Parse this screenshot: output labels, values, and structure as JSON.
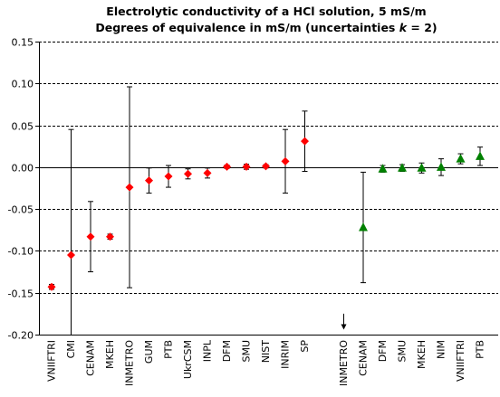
{
  "chart_data": {
    "type": "scatter",
    "title_line1": "Electrolytic conductivity of a HCl solution, 5 mS/m",
    "title_line2_prefix": "Degrees of equivalence in mS/m (uncertainties ",
    "title_line2_k": "k",
    "title_line2_suffix": " = 2)",
    "xlabel": "",
    "ylabel": "",
    "ylim": [
      -0.2,
      0.15
    ],
    "yticks": [
      "0.15",
      "0.10",
      "0.05",
      "0.00",
      "-0.05",
      "-0.10",
      "-0.15",
      "-0.20"
    ],
    "ytick_values": [
      0.15,
      0.1,
      0.05,
      0.0,
      -0.05,
      -0.1,
      -0.15,
      -0.2
    ],
    "grid": "horizontal dashed",
    "categories": [
      "VNIIFTRI",
      "CMI",
      "CENAM",
      "MKEH",
      "INMETRO",
      "GUM",
      "PTB",
      "UkrCSM",
      "INPL",
      "DFM",
      "SMU",
      "NIST",
      "INRIM",
      "SP",
      "",
      "INMETRO",
      "CENAM",
      "DFM",
      "SMU",
      "MKEH",
      "NIM",
      "VNIIFTRI",
      "PTB"
    ],
    "series": [
      {
        "marker": "diamond",
        "color": "#ff0000",
        "points": [
          {
            "category": "VNIIFTRI",
            "index": 0,
            "value": -0.143,
            "unc": 0.003
          },
          {
            "category": "CMI",
            "index": 1,
            "value": -0.105,
            "unc": 0.15
          },
          {
            "category": "CENAM",
            "index": 2,
            "value": -0.083,
            "unc": 0.042
          },
          {
            "category": "MKEH",
            "index": 3,
            "value": -0.083,
            "unc": 0.003
          },
          {
            "category": "INMETRO",
            "index": 4,
            "value": -0.024,
            "unc": 0.12
          },
          {
            "category": "GUM",
            "index": 5,
            "value": -0.016,
            "unc": 0.015
          },
          {
            "category": "PTB",
            "index": 6,
            "value": -0.011,
            "unc": 0.013
          },
          {
            "category": "UkrCSM",
            "index": 7,
            "value": -0.008,
            "unc": 0.006
          },
          {
            "category": "INPL",
            "index": 8,
            "value": -0.007,
            "unc": 0.006
          },
          {
            "category": "DFM",
            "index": 9,
            "value": 0.0005,
            "unc": 0.002
          },
          {
            "category": "SMU",
            "index": 10,
            "value": 0.0005,
            "unc": 0.003
          },
          {
            "category": "NIST",
            "index": 11,
            "value": 0.001,
            "unc": 0.002
          },
          {
            "category": "INRIM",
            "index": 12,
            "value": 0.007,
            "unc": 0.038
          },
          {
            "category": "SP",
            "index": 13,
            "value": 0.031,
            "unc": 0.036
          }
        ]
      },
      {
        "marker": "triangle",
        "color": "#008000",
        "points": [
          {
            "category": "CENAM",
            "index": 16,
            "value": -0.072,
            "unc": 0.066
          },
          {
            "category": "DFM",
            "index": 17,
            "value": -0.002,
            "unc": 0.004
          },
          {
            "category": "SMU",
            "index": 18,
            "value": -0.001,
            "unc": 0.004
          },
          {
            "category": "MKEH",
            "index": 19,
            "value": -0.001,
            "unc": 0.006
          },
          {
            "category": "NIM",
            "index": 20,
            "value": 0.0,
            "unc": 0.01
          },
          {
            "category": "VNIIFTRI",
            "index": 21,
            "value": 0.01,
            "unc": 0.006
          },
          {
            "category": "PTB",
            "index": 22,
            "value": 0.013,
            "unc": 0.011
          }
        ]
      }
    ],
    "arrow_annotation": {
      "category": "INMETRO",
      "index": 15,
      "from_value": -0.175,
      "to_value": -0.193,
      "direction": "down"
    }
  }
}
